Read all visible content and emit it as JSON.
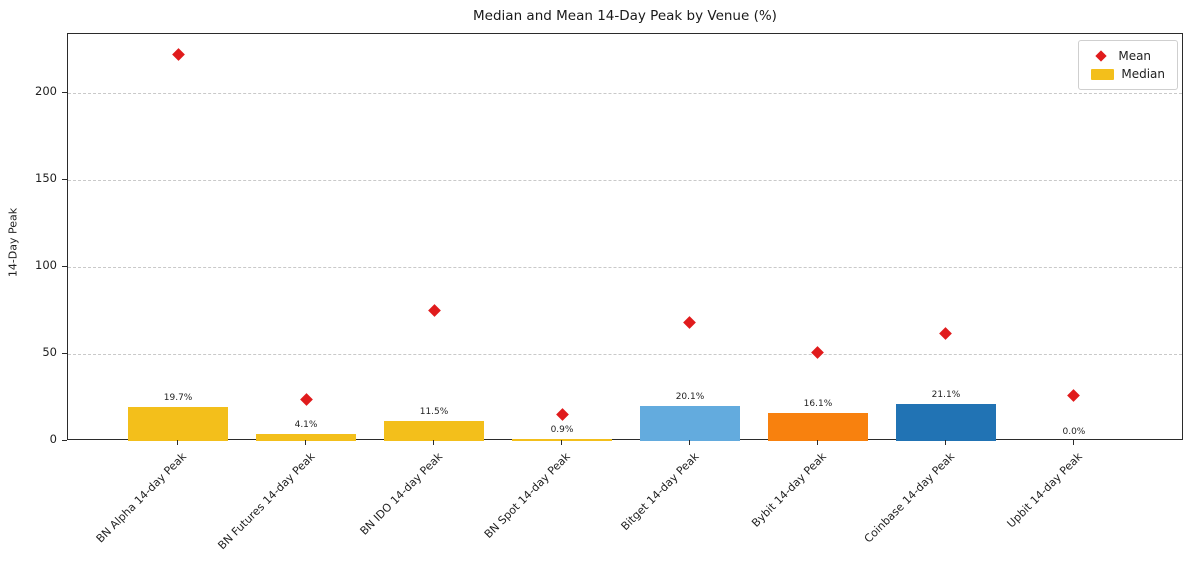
{
  "chart_data": {
    "type": "bar",
    "title": "Median and Mean 14-Day Peak by Venue (%)",
    "xlabel": "",
    "ylabel": "14-Day Peak",
    "categories": [
      "BN Alpha 14-day Peak",
      "BN Futures 14-day Peak",
      "BN IDO 14-day Peak",
      "BN Spot 14-day Peak",
      "Bitget 14-day Peak",
      "Bybit 14-day Peak",
      "Coinbase 14-day Peak",
      "Upbit 14-day Peak"
    ],
    "series": [
      {
        "name": "Median",
        "render": "bar",
        "values": [
          19.7,
          4.1,
          11.5,
          0.9,
          20.1,
          16.1,
          21.1,
          0.0
        ],
        "labels": [
          "19.7%",
          "4.1%",
          "11.5%",
          "0.9%",
          "20.1%",
          "16.1%",
          "21.1%",
          "0.0%"
        ],
        "colors": [
          "#f3bf1b",
          "#f3bf1b",
          "#f3bf1b",
          "#f3bf1b",
          "#63abde",
          "#f8810e",
          "#2173b4",
          "#f3bf1b"
        ]
      },
      {
        "name": "Mean",
        "render": "scatter",
        "marker": "diamond",
        "color": "#e01b1c",
        "values": [
          222,
          24,
          75,
          15,
          68,
          51,
          62,
          26
        ]
      }
    ],
    "yticks": [
      0,
      50,
      100,
      150,
      200
    ],
    "ylim": [
      0,
      234
    ],
    "grid": "dashed-horizontal",
    "legend_position": "upper-right",
    "legend": [
      {
        "label": "Mean",
        "marker": "diamond"
      },
      {
        "label": "Median",
        "marker": "rect"
      }
    ]
  }
}
